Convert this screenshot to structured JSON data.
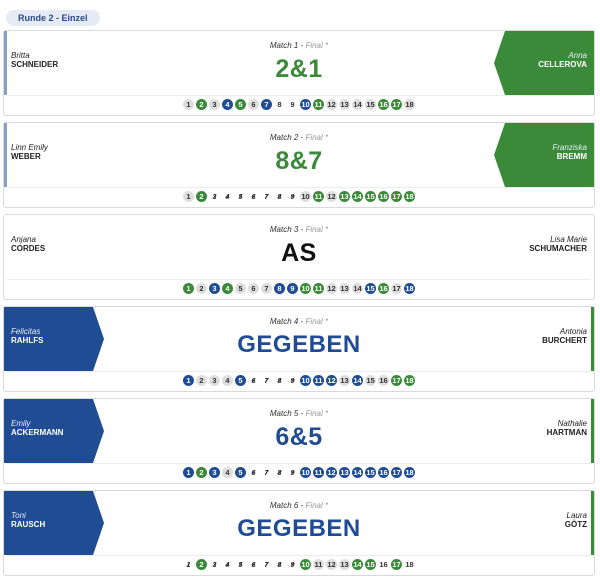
{
  "round_label": "Runde 2 - Einzel",
  "colors": {
    "green": "#3b8a3a",
    "blue": "#1f4c92",
    "neutral": "#111111",
    "status": "#999999"
  },
  "matches": [
    {
      "label": "Match 1",
      "status": "Final *",
      "left": {
        "first": "Britta",
        "last": "SCHNEIDER"
      },
      "right": {
        "first": "Anna",
        "last": "CELLEROVA"
      },
      "score": "2&1",
      "score_color": "#3b8a3a",
      "holes": [
        {
          "n": "1",
          "state": "halved"
        },
        {
          "n": "2",
          "state": "win-green"
        },
        {
          "n": "3",
          "state": "halved"
        },
        {
          "n": "4",
          "state": "win-blue"
        },
        {
          "n": "5",
          "state": "win-green"
        },
        {
          "n": "6",
          "state": "halved"
        },
        {
          "n": "7",
          "state": "win-blue"
        },
        {
          "n": "8",
          "state": "plain"
        },
        {
          "n": "9",
          "state": "plain"
        },
        {
          "n": "10",
          "state": "win-blue"
        },
        {
          "n": "11",
          "state": "win-green"
        },
        {
          "n": "12",
          "state": "halved"
        },
        {
          "n": "13",
          "state": "halved"
        },
        {
          "n": "14",
          "state": "halved"
        },
        {
          "n": "15",
          "state": "halved"
        },
        {
          "n": "16",
          "state": "win-green"
        },
        {
          "n": "17",
          "state": "win-green"
        },
        {
          "n": "18",
          "state": "halved"
        }
      ]
    },
    {
      "label": "Match 2",
      "status": "Final *",
      "left": {
        "first": "Linn Emily",
        "last": "WEBER"
      },
      "right": {
        "first": "Franziska",
        "last": "BREMM"
      },
      "score": "8&7",
      "score_color": "#3b8a3a",
      "holes": [
        {
          "n": "1",
          "state": "halved"
        },
        {
          "n": "2",
          "state": "win-green"
        },
        {
          "n": "3",
          "state": "unplayed"
        },
        {
          "n": "4",
          "state": "unplayed"
        },
        {
          "n": "5",
          "state": "unplayed"
        },
        {
          "n": "6",
          "state": "unplayed"
        },
        {
          "n": "7",
          "state": "unplayed"
        },
        {
          "n": "8",
          "state": "unplayed"
        },
        {
          "n": "9",
          "state": "unplayed"
        },
        {
          "n": "10",
          "state": "halved"
        },
        {
          "n": "11",
          "state": "win-green"
        },
        {
          "n": "12",
          "state": "halved"
        },
        {
          "n": "13",
          "state": "win-green"
        },
        {
          "n": "14",
          "state": "win-green"
        },
        {
          "n": "15",
          "state": "win-green"
        },
        {
          "n": "16",
          "state": "win-green"
        },
        {
          "n": "17",
          "state": "win-green"
        },
        {
          "n": "18",
          "state": "win-green"
        }
      ]
    },
    {
      "label": "Match 3",
      "status": "Final *",
      "left": {
        "first": "Anjana",
        "last": "CORDES"
      },
      "right": {
        "first": "Lisa Marie",
        "last": "SCHUMACHER"
      },
      "score": "AS",
      "score_color": "#111111",
      "holes": [
        {
          "n": "1",
          "state": "win-green"
        },
        {
          "n": "2",
          "state": "halved"
        },
        {
          "n": "3",
          "state": "win-blue"
        },
        {
          "n": "4",
          "state": "win-green"
        },
        {
          "n": "5",
          "state": "halved"
        },
        {
          "n": "6",
          "state": "halved"
        },
        {
          "n": "7",
          "state": "halved"
        },
        {
          "n": "8",
          "state": "win-blue"
        },
        {
          "n": "9",
          "state": "win-blue"
        },
        {
          "n": "10",
          "state": "win-green"
        },
        {
          "n": "11",
          "state": "win-green"
        },
        {
          "n": "12",
          "state": "halved"
        },
        {
          "n": "13",
          "state": "halved"
        },
        {
          "n": "14",
          "state": "halved"
        },
        {
          "n": "15",
          "state": "win-blue"
        },
        {
          "n": "16",
          "state": "win-green"
        },
        {
          "n": "17",
          "state": "halved"
        },
        {
          "n": "18",
          "state": "win-blue"
        }
      ]
    },
    {
      "label": "Match 4",
      "status": "Final *",
      "left": {
        "first": "Felicitas",
        "last": "RAHLFS"
      },
      "right": {
        "first": "Antonia",
        "last": "BURCHERT"
      },
      "score": "GEGEBEN",
      "score_color": "#1f4c92",
      "holes": [
        {
          "n": "1",
          "state": "win-blue"
        },
        {
          "n": "2",
          "state": "halved"
        },
        {
          "n": "3",
          "state": "halved"
        },
        {
          "n": "4",
          "state": "halved"
        },
        {
          "n": "5",
          "state": "win-blue"
        },
        {
          "n": "6",
          "state": "unplayed"
        },
        {
          "n": "7",
          "state": "unplayed"
        },
        {
          "n": "8",
          "state": "unplayed"
        },
        {
          "n": "9",
          "state": "unplayed"
        },
        {
          "n": "10",
          "state": "win-blue"
        },
        {
          "n": "11",
          "state": "win-blue"
        },
        {
          "n": "12",
          "state": "win-blue"
        },
        {
          "n": "13",
          "state": "halved"
        },
        {
          "n": "14",
          "state": "win-blue"
        },
        {
          "n": "15",
          "state": "halved"
        },
        {
          "n": "16",
          "state": "halved"
        },
        {
          "n": "17",
          "state": "win-green"
        },
        {
          "n": "18",
          "state": "win-green"
        }
      ]
    },
    {
      "label": "Match 5",
      "status": "Final *",
      "left": {
        "first": "Emily",
        "last": "ACKERMANN"
      },
      "right": {
        "first": "Nathalie",
        "last": "HARTMAN"
      },
      "score": "6&5",
      "score_color": "#1f4c92",
      "holes": [
        {
          "n": "1",
          "state": "win-blue"
        },
        {
          "n": "2",
          "state": "win-green"
        },
        {
          "n": "3",
          "state": "win-blue"
        },
        {
          "n": "4",
          "state": "halved"
        },
        {
          "n": "5",
          "state": "win-blue"
        },
        {
          "n": "6",
          "state": "unplayed"
        },
        {
          "n": "7",
          "state": "unplayed"
        },
        {
          "n": "8",
          "state": "unplayed"
        },
        {
          "n": "9",
          "state": "unplayed"
        },
        {
          "n": "10",
          "state": "win-blue"
        },
        {
          "n": "11",
          "state": "win-blue"
        },
        {
          "n": "12",
          "state": "win-blue"
        },
        {
          "n": "13",
          "state": "win-blue"
        },
        {
          "n": "14",
          "state": "win-blue"
        },
        {
          "n": "15",
          "state": "win-blue"
        },
        {
          "n": "16",
          "state": "win-blue"
        },
        {
          "n": "17",
          "state": "win-blue"
        },
        {
          "n": "18",
          "state": "win-blue"
        }
      ]
    },
    {
      "label": "Match 6",
      "status": "Final *",
      "left": {
        "first": "Toni",
        "last": "RAUSCH"
      },
      "right": {
        "first": "Laura",
        "last": "GÖTZ"
      },
      "score": "GEGEBEN",
      "score_color": "#1f4c92",
      "holes": [
        {
          "n": "1",
          "state": "unplayed"
        },
        {
          "n": "2",
          "state": "win-green"
        },
        {
          "n": "3",
          "state": "unplayed"
        },
        {
          "n": "4",
          "state": "unplayed"
        },
        {
          "n": "5",
          "state": "unplayed"
        },
        {
          "n": "6",
          "state": "unplayed"
        },
        {
          "n": "7",
          "state": "unplayed"
        },
        {
          "n": "8",
          "state": "unplayed"
        },
        {
          "n": "9",
          "state": "unplayed"
        },
        {
          "n": "10",
          "state": "win-green"
        },
        {
          "n": "11",
          "state": "halved"
        },
        {
          "n": "12",
          "state": "halved"
        },
        {
          "n": "13",
          "state": "halved"
        },
        {
          "n": "14",
          "state": "win-green"
        },
        {
          "n": "15",
          "state": "win-green"
        },
        {
          "n": "16",
          "state": "plain"
        },
        {
          "n": "17",
          "state": "win-green"
        },
        {
          "n": "18",
          "state": "plain"
        }
      ]
    }
  ]
}
